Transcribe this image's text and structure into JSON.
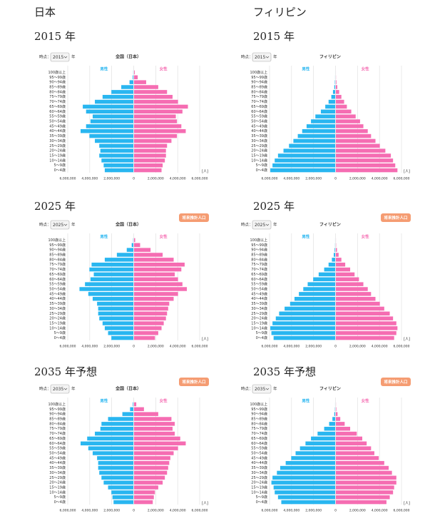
{
  "columns": [
    "日本",
    "フィリピン"
  ],
  "chart_data": [
    {
      "type": "pyramid",
      "heading": "2015 年",
      "title": "全国（日本）",
      "control_label": "時点：",
      "selected": "2015",
      "control_unit": "年",
      "categories": [
        "0～4歳",
        "5～9歳",
        "10～14歳",
        "15～19歳",
        "20～24歳",
        "25～29歳",
        "30～34歳",
        "35～39歳",
        "40～44歳",
        "45～49歳",
        "50～54歳",
        "55～59歳",
        "60～64歳",
        "65～69歳",
        "70～74歳",
        "75～79歳",
        "80～84歳",
        "85～89歳",
        "90～94歳",
        "95～99歳",
        "100歳以上"
      ],
      "series": [
        {
          "name": "男性",
          "color": "#29b6f0",
          "side": "left",
          "values": [
            2600000,
            2700000,
            2900000,
            3100000,
            3000000,
            3100000,
            3500000,
            4000000,
            4800000,
            4300000,
            3900000,
            3700000,
            4300000,
            4600000,
            3500000,
            2800000,
            2000000,
            1100000,
            350000,
            60000,
            10000
          ]
        },
        {
          "name": "女性",
          "color": "#f56db2",
          "side": "right",
          "values": [
            2500000,
            2600000,
            2800000,
            2900000,
            2900000,
            3000000,
            3400000,
            3900000,
            4700000,
            4300000,
            3900000,
            3800000,
            4400000,
            4900000,
            4000000,
            3500000,
            3000000,
            2200000,
            1100000,
            330000,
            60000
          ]
        }
      ],
      "xlim": [
        0,
        6000000
      ],
      "xticks": [
        0,
        {
          "value": 2000000,
          "label": "2,000,000"
        },
        {
          "value": 4000000,
          "label": "4,000,000"
        },
        {
          "value": 6000000,
          "label": "6,000,000"
        }
      ],
      "unit": "[人]",
      "grid": true
    },
    {
      "type": "pyramid",
      "heading": "2015 年",
      "title": "フィリピン",
      "control_label": "時点：",
      "selected": "2015",
      "control_unit": "年",
      "categories": [
        "0～4歳",
        "5～9歳",
        "10～14歳",
        "15～19歳",
        "20～24歳",
        "25～29歳",
        "30～34歳",
        "35～39歳",
        "40～44歳",
        "45～49歳",
        "50～54歳",
        "55～59歳",
        "60～64歳",
        "65～69歳",
        "70～74歳",
        "75～79歳",
        "80～84歳",
        "85～89歳",
        "90～94歳",
        "95～99歳",
        "100歳以上"
      ],
      "series": [
        {
          "name": "男性",
          "color": "#29b6f0",
          "side": "left",
          "values": [
            5900000,
            5700000,
            5500000,
            5200000,
            4700000,
            4200000,
            3800000,
            3400000,
            3000000,
            2600000,
            2200000,
            1800000,
            1300000,
            900000,
            600000,
            350000,
            200000,
            80000,
            30000,
            5000,
            1000
          ]
        },
        {
          "name": "女性",
          "color": "#f56db2",
          "side": "right",
          "values": [
            5600000,
            5400000,
            5200000,
            5000000,
            4500000,
            4000000,
            3600000,
            3200000,
            2900000,
            2500000,
            2200000,
            1800000,
            1400000,
            1000000,
            750000,
            500000,
            300000,
            130000,
            50000,
            10000,
            2000
          ]
        }
      ],
      "xlim": [
        0,
        6000000
      ],
      "xticks": [
        0,
        {
          "value": 2000000,
          "label": "2,000,000"
        },
        {
          "value": 4000000,
          "label": "4,000,000"
        },
        {
          "value": 6000000,
          "label": "6,000,000"
        }
      ],
      "unit": "[人]",
      "grid": true
    },
    {
      "type": "pyramid",
      "heading": "2025 年",
      "title": "全国（日本）",
      "control_label": "時点：",
      "selected": "2025",
      "control_unit": "年",
      "button": "将来推計人口",
      "categories": [
        "0～4歳",
        "5～9歳",
        "10～14歳",
        "15～19歳",
        "20～24歳",
        "25～29歳",
        "30～34歳",
        "35～39歳",
        "40～44歳",
        "45～49歳",
        "50～54歳",
        "55～59歳",
        "60～64歳",
        "65～69歳",
        "70～74歳",
        "75～79歳",
        "80～84歳",
        "85～89歳",
        "90～94歳",
        "95～99歳",
        "100歳以上"
      ],
      "series": [
        {
          "name": "男性",
          "color": "#29b6f0",
          "side": "left",
          "values": [
            2000000,
            2300000,
            2600000,
            2800000,
            3100000,
            3200000,
            3200000,
            3300000,
            3700000,
            4100000,
            4900000,
            4400000,
            3900000,
            3600000,
            4000000,
            3800000,
            2600000,
            1500000,
            600000,
            150000,
            20000
          ]
        },
        {
          "name": "女性",
          "color": "#f56db2",
          "side": "right",
          "values": [
            1900000,
            2200000,
            2500000,
            2700000,
            2900000,
            3000000,
            3100000,
            3200000,
            3600000,
            4000000,
            4800000,
            4400000,
            4000000,
            3700000,
            4300000,
            4600000,
            3600000,
            2600000,
            1500000,
            550000,
            100000
          ]
        }
      ],
      "xlim": [
        0,
        6000000
      ],
      "xticks": [
        0,
        {
          "value": 2000000,
          "label": "2,000,000"
        },
        {
          "value": 4000000,
          "label": "4,000,000"
        },
        {
          "value": 6000000,
          "label": "6,000,000"
        }
      ],
      "unit": "[人]",
      "grid": true
    },
    {
      "type": "pyramid",
      "heading": "2025 年",
      "title": "フィリピン",
      "control_label": "時点：",
      "selected": "2025",
      "control_unit": "年",
      "button": "将来推計人口",
      "categories": [
        "0～4歳",
        "5～9歳",
        "10～14歳",
        "15～19歳",
        "20～24歳",
        "25～29歳",
        "30～34歳",
        "35～39歳",
        "40～44歳",
        "45～49歳",
        "50～54歳",
        "55～59歳",
        "60～64歳",
        "65～69歳",
        "70～74歳",
        "75～79歳",
        "80～84歳",
        "85～89歳",
        "90～94歳",
        "95～99歳",
        "100歳以上"
      ],
      "series": [
        {
          "name": "男性",
          "color": "#29b6f0",
          "side": "left",
          "values": [
            5600000,
            5800000,
            5900000,
            5700000,
            5400000,
            5100000,
            4600000,
            4100000,
            3700000,
            3300000,
            2900000,
            2500000,
            2000000,
            1500000,
            1000000,
            600000,
            300000,
            130000,
            50000,
            10000,
            2000
          ]
        },
        {
          "name": "女性",
          "color": "#f56db2",
          "side": "right",
          "values": [
            5300000,
            5500000,
            5600000,
            5500000,
            5200000,
            4900000,
            4400000,
            4000000,
            3600000,
            3200000,
            2900000,
            2500000,
            2100000,
            1700000,
            1300000,
            850000,
            500000,
            250000,
            100000,
            20000,
            4000
          ]
        }
      ],
      "xlim": [
        0,
        6000000
      ],
      "xticks": [
        0,
        {
          "value": 2000000,
          "label": "2,000,000"
        },
        {
          "value": 4000000,
          "label": "4,000,000"
        },
        {
          "value": 6000000,
          "label": "6,000,000"
        }
      ],
      "unit": "[人]",
      "grid": true
    },
    {
      "type": "pyramid",
      "heading": "2035 年予想",
      "title": "全国（日本）",
      "control_label": "時点：",
      "selected": "2035",
      "control_unit": "年",
      "button": "将来推計人口",
      "categories": [
        "0～4歳",
        "5～9歳",
        "10～14歳",
        "15～19歳",
        "20～24歳",
        "25～29歳",
        "30～34歳",
        "35～39歳",
        "40～44歳",
        "45～49歳",
        "50～54歳",
        "55～59歳",
        "60～64歳",
        "65～69歳",
        "70～74歳",
        "75～79歳",
        "80～84歳",
        "85～89歳",
        "90～94歳",
        "95～99歳",
        "100歳以上"
      ],
      "series": [
        {
          "name": "男性",
          "color": "#29b6f0",
          "side": "left",
          "values": [
            1800000,
            1900000,
            2000000,
            2300000,
            2700000,
            2900000,
            3100000,
            3200000,
            3200000,
            3300000,
            3700000,
            4100000,
            4800000,
            4200000,
            3500000,
            3000000,
            2900000,
            2300000,
            1000000,
            300000,
            50000
          ]
        },
        {
          "name": "女性",
          "color": "#f56db2",
          "side": "right",
          "values": [
            1700000,
            1800000,
            1900000,
            2200000,
            2600000,
            2800000,
            3000000,
            3100000,
            3200000,
            3300000,
            3600000,
            4000000,
            4700000,
            4200000,
            3700000,
            3500000,
            3700000,
            3400000,
            2200000,
            900000,
            200000
          ]
        }
      ],
      "xlim": [
        0,
        6000000
      ],
      "xticks": [
        0,
        {
          "value": 2000000,
          "label": "2,000,000"
        },
        {
          "value": 4000000,
          "label": "4,000,000"
        },
        {
          "value": 6000000,
          "label": "6,000,000"
        }
      ],
      "unit": "[人]",
      "grid": true
    },
    {
      "type": "pyramid",
      "heading": "2035 年予想",
      "title": "フィリピン",
      "control_label": "時点：",
      "selected": "2035",
      "control_unit": "年",
      "button": "将来推計人口",
      "categories": [
        "0～4歳",
        "5～9歳",
        "10～14歳",
        "15～19歳",
        "20～24歳",
        "25～29歳",
        "30～34歳",
        "35～39歳",
        "40～44歳",
        "45～49歳",
        "50～54歳",
        "55～59歳",
        "60～64歳",
        "65～69歳",
        "70～74歳",
        "75～79歳",
        "80～84歳",
        "85～89歳",
        "90～94歳",
        "95～99歳",
        "100歳以上"
      ],
      "series": [
        {
          "name": "男性",
          "color": "#29b6f0",
          "side": "left",
          "values": [
            4900000,
            5200000,
            5500000,
            5600000,
            5800000,
            5700000,
            5300000,
            5000000,
            4500000,
            4000000,
            3600000,
            3200000,
            2700000,
            2200000,
            1600000,
            1000000,
            550000,
            250000,
            80000,
            20000,
            3000
          ]
        },
        {
          "name": "女性",
          "color": "#f56db2",
          "side": "right",
          "values": [
            4600000,
            4900000,
            5200000,
            5300000,
            5500000,
            5500000,
            5100000,
            4800000,
            4400000,
            3900000,
            3500000,
            3200000,
            2800000,
            2400000,
            1900000,
            1300000,
            800000,
            400000,
            150000,
            40000,
            8000
          ]
        }
      ],
      "xlim": [
        0,
        6000000
      ],
      "xticks": [
        0,
        {
          "value": 2000000,
          "label": "2,000,000"
        },
        {
          "value": 4000000,
          "label": "4,000,000"
        },
        {
          "value": 6000000,
          "label": "6,000,000"
        }
      ],
      "unit": "[人]",
      "grid": true
    }
  ]
}
